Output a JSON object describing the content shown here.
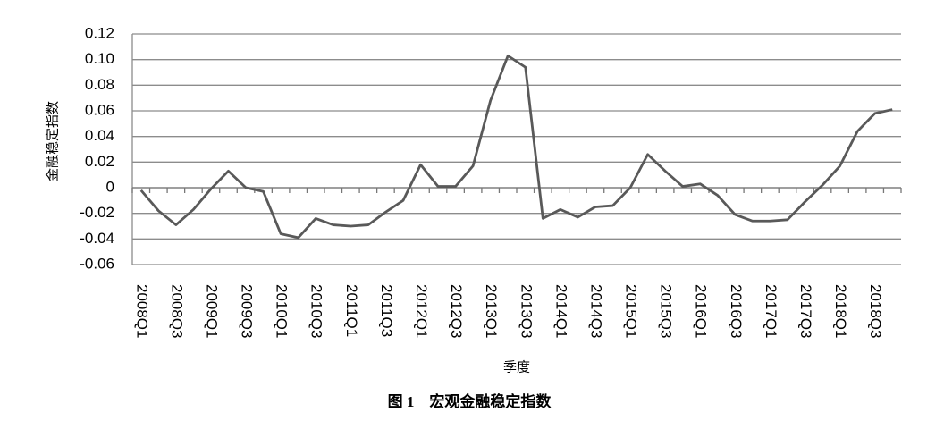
{
  "chart_data": {
    "type": "line",
    "caption": "图 1　宏观金融稳定指数",
    "y_label": "金融稳定指数",
    "x_label": "季度",
    "categories": [
      "2008Q1",
      null,
      "2008Q3",
      null,
      "2009Q1",
      null,
      "2009Q3",
      null,
      "2010Q1",
      null,
      "2010Q3",
      null,
      "2011Q1",
      null,
      "2011Q3",
      null,
      "2012Q1",
      null,
      "2012Q3",
      null,
      "2013Q1",
      null,
      "2013Q3",
      null,
      "2014Q1",
      null,
      "2014Q3",
      null,
      "2015Q1",
      null,
      "2015Q3",
      null,
      "2016Q1",
      null,
      "2016Q3",
      null,
      "2017Q1",
      null,
      "2017Q3",
      null,
      "2018Q1",
      null,
      "2018Q3",
      null
    ],
    "values": [
      -0.002,
      -0.018,
      -0.029,
      -0.017,
      -0.001,
      0.013,
      0.0,
      -0.003,
      -0.036,
      -0.039,
      -0.024,
      -0.029,
      -0.03,
      -0.029,
      -0.019,
      -0.01,
      0.018,
      0.001,
      0.001,
      0.017,
      0.068,
      0.103,
      0.094,
      -0.024,
      -0.017,
      -0.023,
      -0.015,
      -0.014,
      0.0,
      0.026,
      0.013,
      0.001,
      0.003,
      -0.006,
      -0.021,
      -0.026,
      -0.026,
      -0.025,
      -0.011,
      0.002,
      0.017,
      0.044,
      0.058,
      0.061
    ],
    "color": "#595959",
    "ylim": [
      -0.06,
      0.12
    ],
    "yticks": [
      -0.06,
      -0.04,
      -0.02,
      0,
      0.02,
      0.04,
      0.06,
      0.08,
      {
        "value": 0.1,
        "label": "0.10"
      },
      0.12
    ],
    "grid": true
  }
}
